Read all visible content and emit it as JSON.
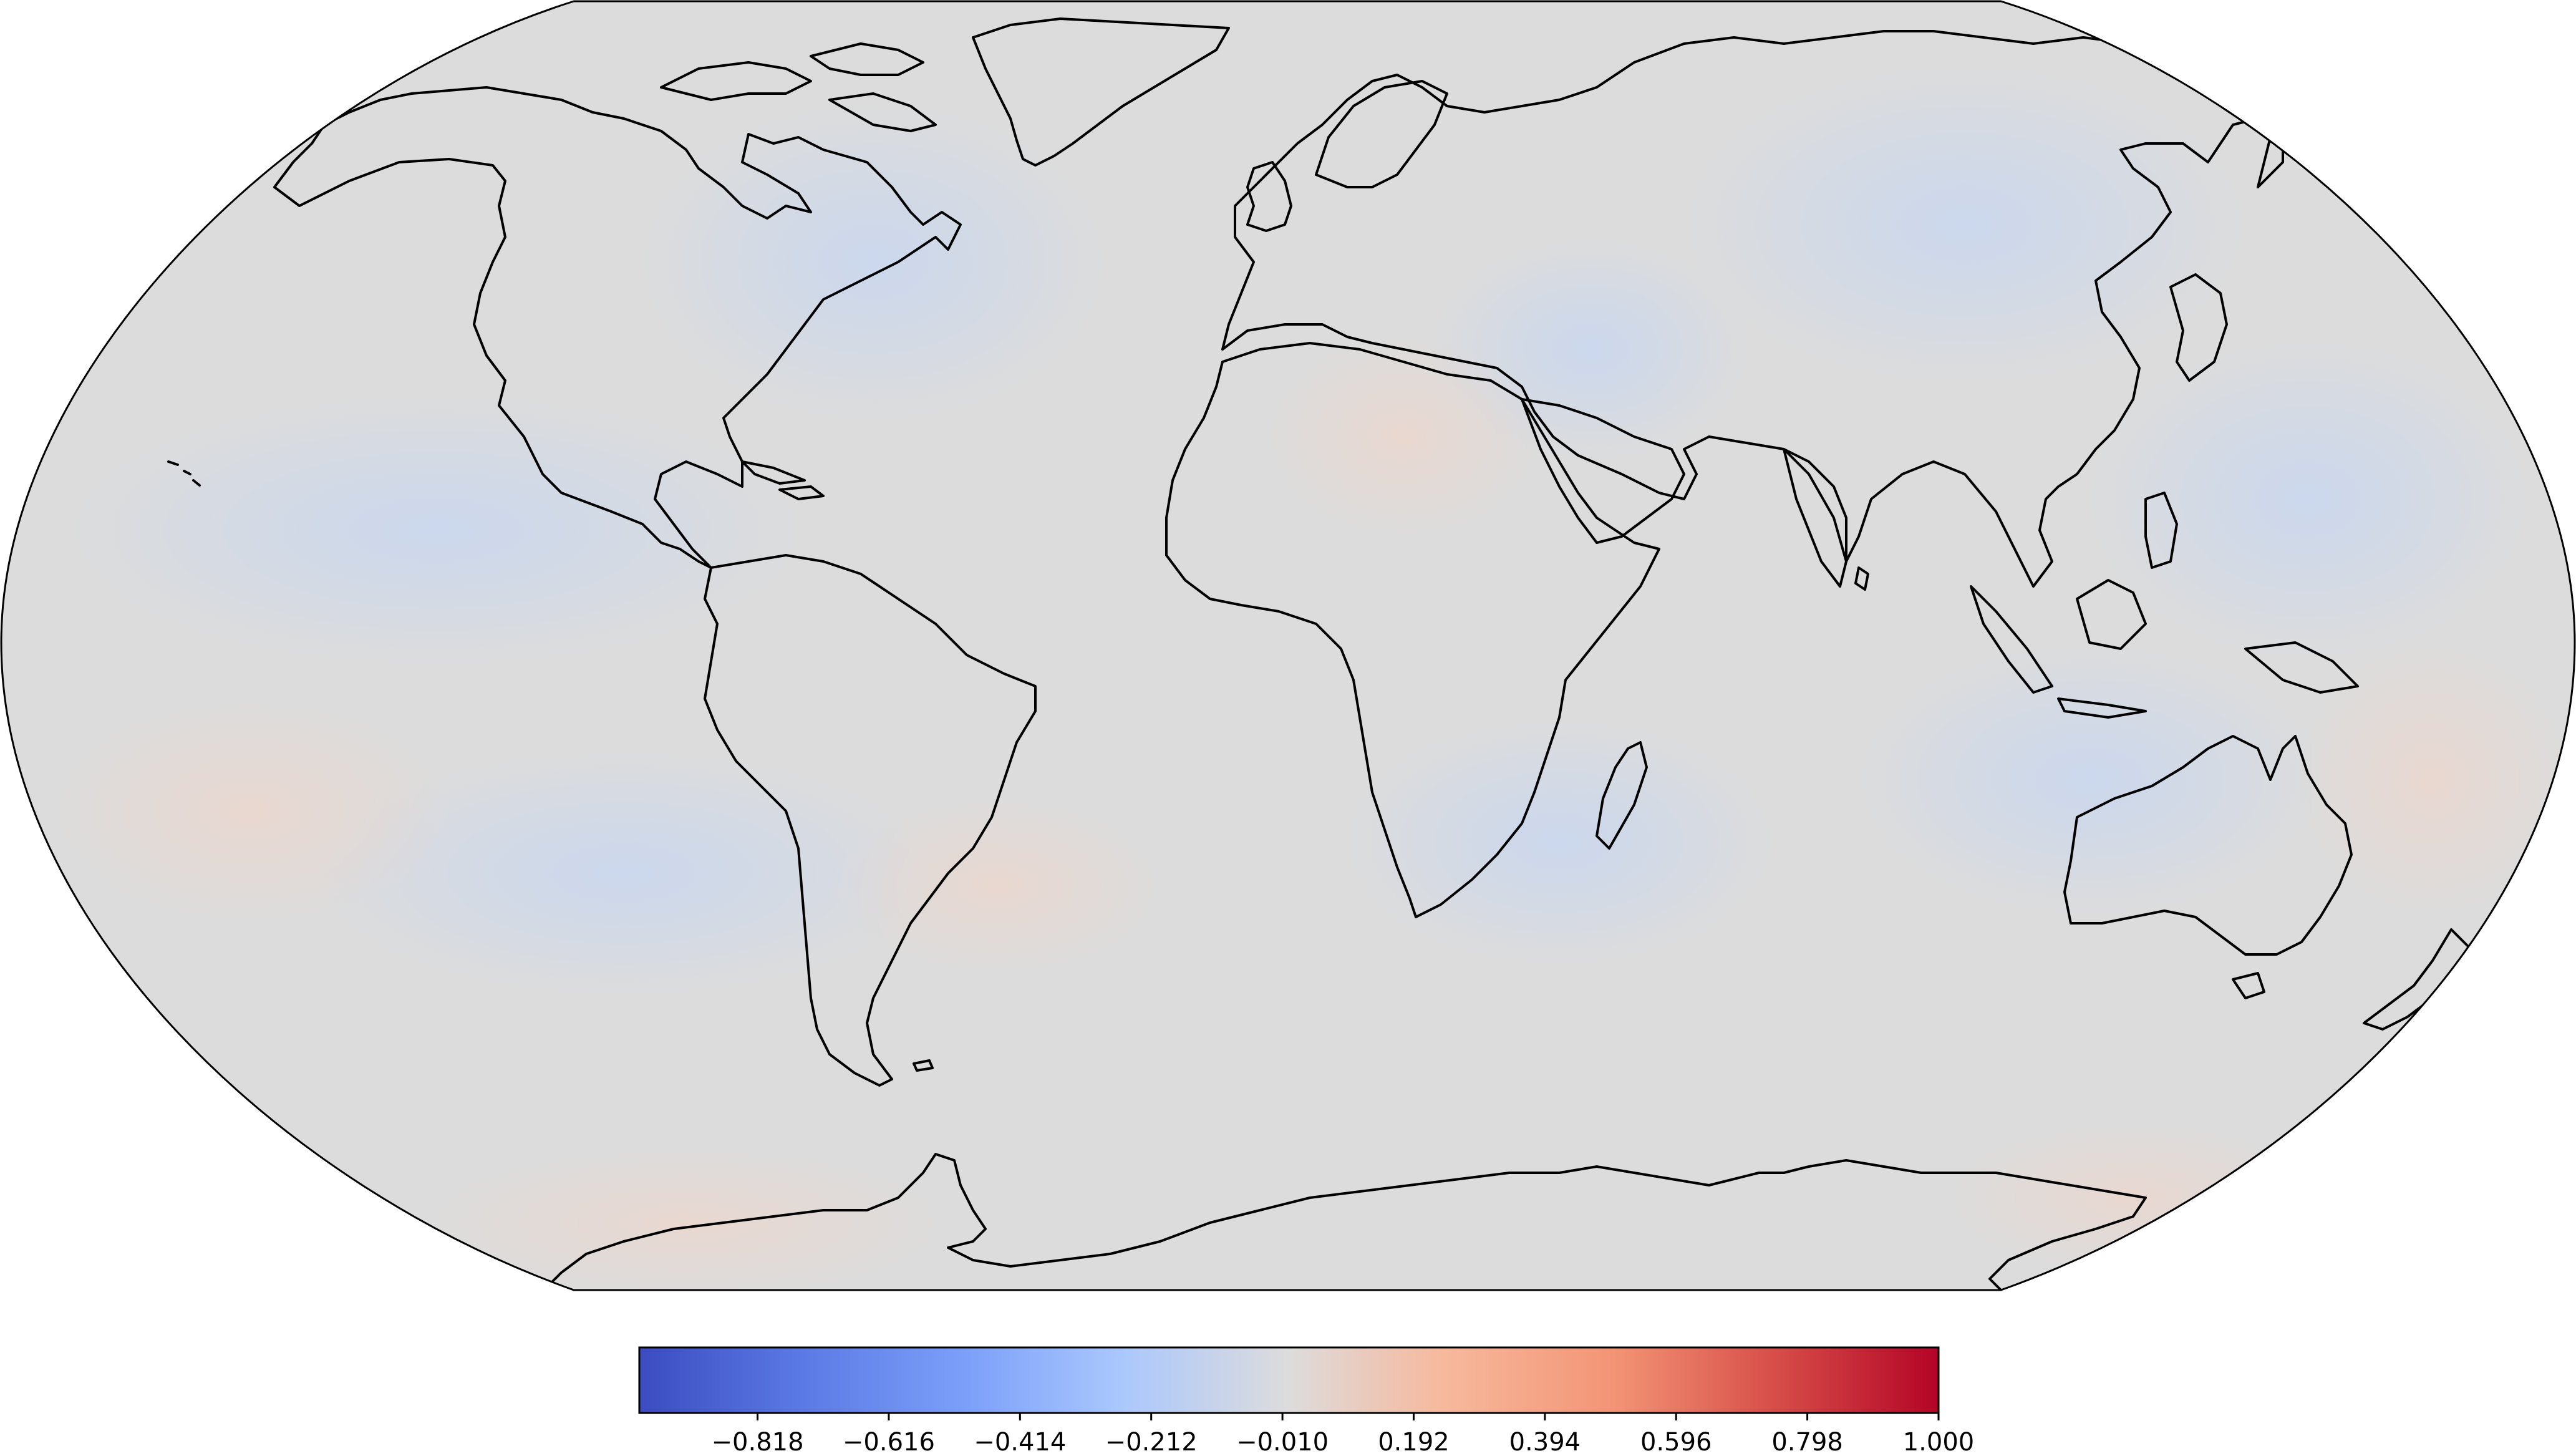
{
  "figure": {
    "type": "global-map",
    "projection": "robinson"
  },
  "colorbar": {
    "colormap": "coolwarm",
    "min": -1.0,
    "max": 1.0,
    "colors": {
      "low": "#3b4cc0",
      "light_blue": "#aac7fd",
      "mid": "#dddcdc",
      "light_red": "#f7b89c",
      "high": "#b40426"
    },
    "ticks": [
      {
        "value": -0.818,
        "label": "−0.818"
      },
      {
        "value": -0.616,
        "label": "−0.616"
      },
      {
        "value": -0.414,
        "label": "−0.414"
      },
      {
        "value": -0.212,
        "label": "−0.212"
      },
      {
        "value": -0.01,
        "label": "−0.010"
      },
      {
        "value": 0.192,
        "label": "0.192"
      },
      {
        "value": 0.394,
        "label": "0.394"
      },
      {
        "value": 0.596,
        "label": "0.596"
      },
      {
        "value": 0.798,
        "label": "0.798"
      },
      {
        "value": 1.0,
        "label": "1.000"
      }
    ]
  },
  "field": {
    "description_colors": {
      "background": "#dcdcdc",
      "slight_negative": "#cfd9ec",
      "slight_positive": "#e6d9d3"
    }
  }
}
